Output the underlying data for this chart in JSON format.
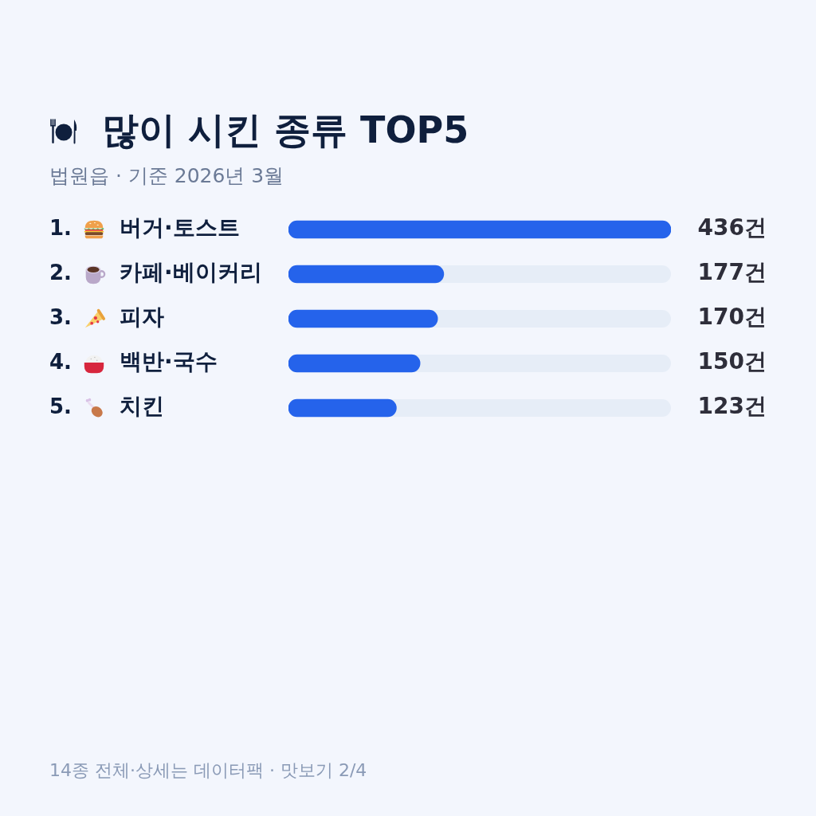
{
  "chart_data": {
    "type": "bar",
    "orientation": "horizontal",
    "title": "많이 시킨 종류 TOP5",
    "subtitle": "법원읍 · 기준 2026년 3월",
    "categories": [
      "1. 버거·토스트",
      "2. 카페·베이커리",
      "3. 피자",
      "4. 백반·국수",
      "5. 치킨"
    ],
    "values": [
      436,
      177,
      170,
      150,
      123
    ],
    "value_labels": [
      "436건",
      "177건",
      "170건",
      "150건",
      "123건"
    ],
    "color": "#2563eb",
    "xlim": [
      0,
      436
    ],
    "tick_labels": "y",
    "annotations": [
      "14종 전체·상세는 데이터팩 · 맛보기 2/4"
    ]
  }
}
